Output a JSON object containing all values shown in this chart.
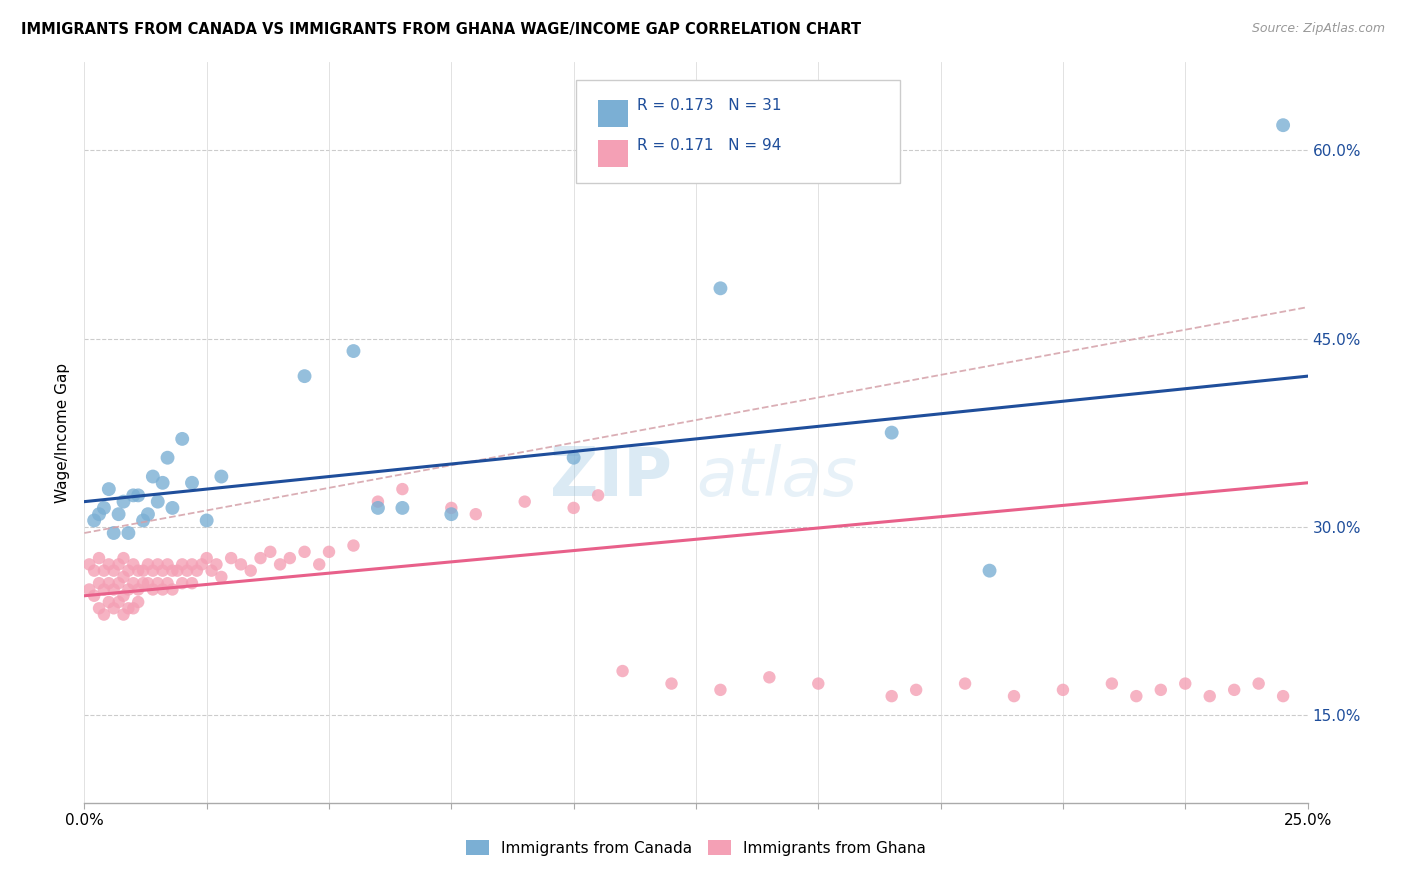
{
  "title": "IMMIGRANTS FROM CANADA VS IMMIGRANTS FROM GHANA WAGE/INCOME GAP CORRELATION CHART",
  "source": "Source: ZipAtlas.com",
  "ylabel": "Wage/Income Gap",
  "yticks": [
    0.15,
    0.3,
    0.45,
    0.6
  ],
  "ytick_labels": [
    "15.0%",
    "30.0%",
    "45.0%",
    "60.0%"
  ],
  "xlim": [
    0.0,
    0.25
  ],
  "ylim": [
    0.08,
    0.67
  ],
  "xtick_positions": [
    0.0,
    0.025,
    0.05,
    0.075,
    0.1,
    0.125,
    0.15,
    0.175,
    0.2,
    0.225,
    0.25
  ],
  "legend_r_canada": "0.173",
  "legend_n_canada": "31",
  "legend_r_ghana": "0.171",
  "legend_n_ghana": "94",
  "legend_label_canada": "Immigrants from Canada",
  "legend_label_ghana": "Immigrants from Ghana",
  "color_canada": "#7BAFD4",
  "color_ghana": "#F4A0B5",
  "color_trend_canada": "#1F4E9B",
  "color_trend_ghana": "#E8608A",
  "color_trend_dashed": "#D4A0A8",
  "watermark_zip": "ZIP",
  "watermark_atlas": "atlas",
  "canada_x": [
    0.002,
    0.003,
    0.004,
    0.005,
    0.006,
    0.007,
    0.008,
    0.009,
    0.01,
    0.011,
    0.012,
    0.013,
    0.014,
    0.015,
    0.016,
    0.017,
    0.018,
    0.02,
    0.022,
    0.025,
    0.028,
    0.045,
    0.055,
    0.06,
    0.065,
    0.075,
    0.1,
    0.13,
    0.165,
    0.185,
    0.245
  ],
  "canada_y": [
    0.305,
    0.31,
    0.315,
    0.33,
    0.295,
    0.31,
    0.32,
    0.295,
    0.325,
    0.325,
    0.305,
    0.31,
    0.34,
    0.32,
    0.335,
    0.355,
    0.315,
    0.37,
    0.335,
    0.305,
    0.34,
    0.42,
    0.44,
    0.315,
    0.315,
    0.31,
    0.355,
    0.49,
    0.375,
    0.265,
    0.62
  ],
  "ghana_x": [
    0.001,
    0.001,
    0.002,
    0.002,
    0.003,
    0.003,
    0.003,
    0.004,
    0.004,
    0.004,
    0.005,
    0.005,
    0.005,
    0.006,
    0.006,
    0.006,
    0.007,
    0.007,
    0.007,
    0.008,
    0.008,
    0.008,
    0.008,
    0.009,
    0.009,
    0.009,
    0.01,
    0.01,
    0.01,
    0.011,
    0.011,
    0.011,
    0.012,
    0.012,
    0.013,
    0.013,
    0.014,
    0.014,
    0.015,
    0.015,
    0.016,
    0.016,
    0.017,
    0.017,
    0.018,
    0.018,
    0.019,
    0.02,
    0.02,
    0.021,
    0.022,
    0.022,
    0.023,
    0.024,
    0.025,
    0.026,
    0.027,
    0.028,
    0.03,
    0.032,
    0.034,
    0.036,
    0.038,
    0.04,
    0.042,
    0.045,
    0.048,
    0.05,
    0.055,
    0.06,
    0.065,
    0.075,
    0.08,
    0.09,
    0.1,
    0.105,
    0.11,
    0.12,
    0.13,
    0.14,
    0.15,
    0.165,
    0.17,
    0.18,
    0.19,
    0.2,
    0.21,
    0.215,
    0.22,
    0.225,
    0.23,
    0.235,
    0.24,
    0.245
  ],
  "ghana_y": [
    0.27,
    0.25,
    0.265,
    0.245,
    0.275,
    0.255,
    0.235,
    0.265,
    0.25,
    0.23,
    0.27,
    0.255,
    0.24,
    0.265,
    0.25,
    0.235,
    0.27,
    0.255,
    0.24,
    0.275,
    0.26,
    0.245,
    0.23,
    0.265,
    0.25,
    0.235,
    0.27,
    0.255,
    0.235,
    0.265,
    0.25,
    0.24,
    0.265,
    0.255,
    0.27,
    0.255,
    0.265,
    0.25,
    0.27,
    0.255,
    0.265,
    0.25,
    0.27,
    0.255,
    0.265,
    0.25,
    0.265,
    0.27,
    0.255,
    0.265,
    0.27,
    0.255,
    0.265,
    0.27,
    0.275,
    0.265,
    0.27,
    0.26,
    0.275,
    0.27,
    0.265,
    0.275,
    0.28,
    0.27,
    0.275,
    0.28,
    0.27,
    0.28,
    0.285,
    0.32,
    0.33,
    0.315,
    0.31,
    0.32,
    0.315,
    0.325,
    0.185,
    0.175,
    0.17,
    0.18,
    0.175,
    0.165,
    0.17,
    0.175,
    0.165,
    0.17,
    0.175,
    0.165,
    0.17,
    0.175,
    0.165,
    0.17,
    0.175,
    0.165
  ]
}
